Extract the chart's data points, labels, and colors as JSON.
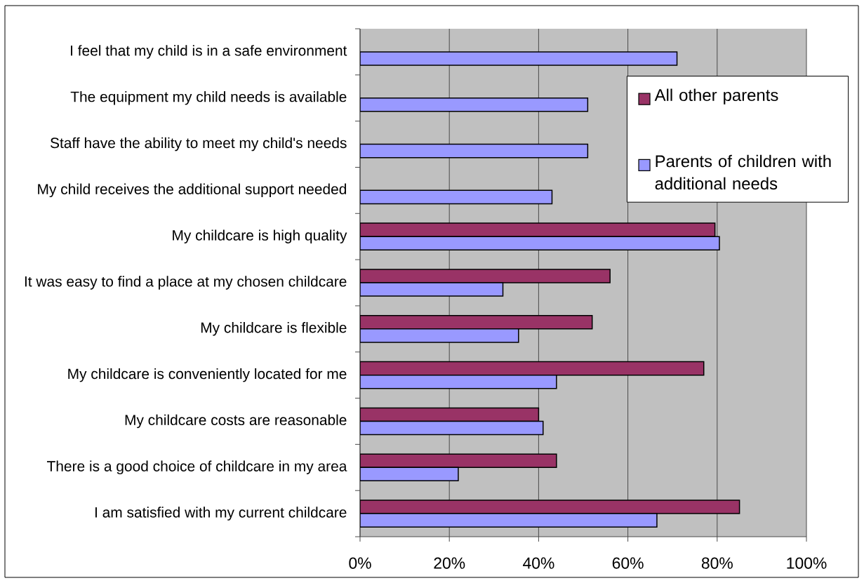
{
  "chart_data": {
    "type": "bar",
    "orientation": "horizontal",
    "categories": [
      "I feel that my child is in a safe environment",
      "The equipment my child needs is available",
      "Staff have the ability to meet my child's needs",
      "My child receives the additional support needed",
      "My childcare is high quality",
      "It was easy to find a place at my chosen childcare",
      "My childcare is flexible",
      "My childcare is conveniently located for me",
      "My childcare costs are reasonable",
      "There is a good choice of childcare in my area",
      "I am satisfied with my current childcare"
    ],
    "series": [
      {
        "name": "All other parents",
        "color": "#993366",
        "values": [
          null,
          null,
          null,
          null,
          79.5,
          56,
          52,
          77,
          40,
          44,
          85
        ]
      },
      {
        "name": "Parents of children with additional needs",
        "color": "#9999ff",
        "values": [
          71,
          51,
          51,
          43,
          80.5,
          32,
          35.5,
          44,
          41,
          22,
          66.5
        ]
      }
    ],
    "xlim": [
      0,
      100
    ],
    "xticks": [
      {
        "value": 0,
        "label": "0%"
      },
      {
        "value": 20,
        "label": "20%"
      },
      {
        "value": 40,
        "label": "40%"
      },
      {
        "value": 60,
        "label": "60%"
      },
      {
        "value": 80,
        "label": "80%"
      },
      {
        "value": 100,
        "label": "100%"
      }
    ],
    "grid": "x",
    "legend": "top right"
  }
}
